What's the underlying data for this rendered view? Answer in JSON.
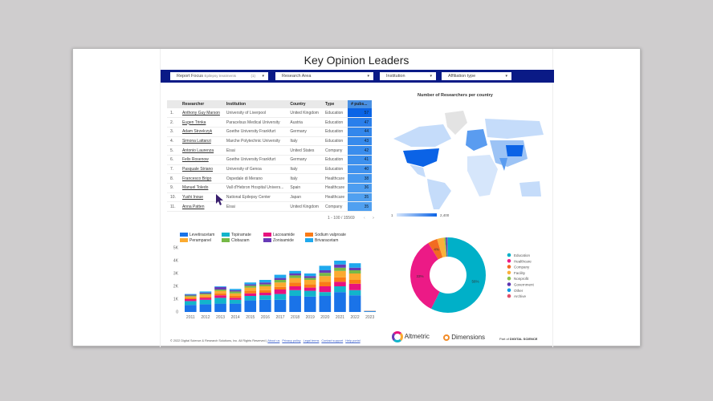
{
  "title": "Key Opinion Leaders",
  "filters": [
    {
      "label": "Report Focus",
      "value": "Epilepsy treatments",
      "count": "(1)"
    },
    {
      "label": "Research Area"
    },
    {
      "label": "Institution"
    },
    {
      "label": "Affiliation type"
    }
  ],
  "table": {
    "headers": [
      "",
      "Researcher",
      "Institution",
      "Country",
      "Type",
      "# pubs..."
    ],
    "rows": [
      [
        "1.",
        "Anthony Guy Marson",
        "University of Liverpool",
        "United Kingdom",
        "Education",
        "57"
      ],
      [
        "2.",
        "Eugen Trinka",
        "Paracelsus Medical University",
        "Austria",
        "Education",
        "47"
      ],
      [
        "3.",
        "Adam Strzelczyk",
        "Goethe University Frankfurt",
        "Germany",
        "Education",
        "44"
      ],
      [
        "4.",
        "Simona Lattanzi",
        "Marche Polytechnic University",
        "Italy",
        "Education",
        "43"
      ],
      [
        "5.",
        "Antonio Laurenza",
        "Eisai",
        "United States",
        "Company",
        "42"
      ],
      [
        "6.",
        "Felix Rosenow",
        "Goethe University Frankfurt",
        "Germany",
        "Education",
        "41"
      ],
      [
        "7.",
        "Pasquale Striano",
        "University of Genoa",
        "Italy",
        "Education",
        "40"
      ],
      [
        "8.",
        "Francesco Brigo",
        "Ospedale di Merano",
        "Italy",
        "Healthcare",
        "38"
      ],
      [
        "9.",
        "Manuel Toledo",
        "Vall d'Hebron Hospital Univers...",
        "Spain",
        "Healthcare",
        "36"
      ],
      [
        "10.",
        "Yushi Inoue",
        "National Epilepsy Center",
        "Japan",
        "Healthcare",
        "35"
      ],
      [
        "11.",
        "Anna Patten",
        "Eisai",
        "United Kingdom",
        "Company",
        "35"
      ]
    ],
    "pagination": "1 - 100 / 15569"
  },
  "map": {
    "title": "Number of Researchers per country",
    "scale_min": "1",
    "scale_max": "2,400",
    "colors": [
      "#d6e6fb",
      "#0b63e6"
    ]
  },
  "chart_data": [
    {
      "type": "bar",
      "stacked": true,
      "categories": [
        "2011",
        "2012",
        "2013",
        "2014",
        "2015",
        "2016",
        "2017",
        "2018",
        "2019",
        "2020",
        "2021",
        "2022",
        "2023"
      ],
      "yticks": [
        "0",
        "1K",
        "2K",
        "3K",
        "4K",
        "5K"
      ],
      "ylim": [
        0,
        5000
      ],
      "legend": "top",
      "series": [
        {
          "name": "Levetiracetam",
          "color": "#1a73e8",
          "values": [
            550,
            600,
            650,
            650,
            900,
            950,
            950,
            1250,
            1200,
            1250,
            1550,
            1300,
            50
          ]
        },
        {
          "name": "Topiramate",
          "color": "#12b5cb",
          "values": [
            300,
            350,
            450,
            300,
            350,
            350,
            450,
            450,
            450,
            300,
            450,
            400,
            20
          ]
        },
        {
          "name": "Lacosamide",
          "color": "#e8127f",
          "values": [
            150,
            150,
            200,
            150,
            200,
            200,
            350,
            300,
            250,
            450,
            350,
            500,
            10
          ]
        },
        {
          "name": "Sodium valproate",
          "color": "#fa7b17",
          "values": [
            100,
            100,
            150,
            150,
            200,
            200,
            200,
            300,
            250,
            350,
            350,
            300,
            5
          ]
        },
        {
          "name": "Perampanel",
          "color": "#fbaa30",
          "values": [
            100,
            150,
            200,
            200,
            250,
            300,
            350,
            350,
            350,
            450,
            500,
            500,
            5
          ]
        },
        {
          "name": "Clobazam",
          "color": "#76b947",
          "values": [
            80,
            80,
            100,
            150,
            150,
            150,
            200,
            200,
            150,
            250,
            250,
            250,
            5
          ]
        },
        {
          "name": "Zonisamide",
          "color": "#673ab7",
          "values": [
            70,
            80,
            200,
            100,
            100,
            150,
            150,
            150,
            150,
            200,
            250,
            200,
            3
          ]
        },
        {
          "name": "Brivaracetam",
          "color": "#1fa9ee",
          "values": [
            50,
            90,
            50,
            100,
            150,
            200,
            250,
            200,
            200,
            350,
            300,
            350,
            2
          ]
        }
      ]
    },
    {
      "type": "pie",
      "donut": true,
      "legend": "right",
      "slices": [
        {
          "name": "Education",
          "value": 56,
          "label": "56%",
          "color": "#00b0c8"
        },
        {
          "name": "Healthcare",
          "value": 33,
          "label": "33%",
          "color": "#ec1a86"
        },
        {
          "name": "Company",
          "value": 4,
          "label": "4%",
          "color": "#f26b22"
        },
        {
          "name": "Facility",
          "value": 3,
          "label": "",
          "color": "#fbb03b"
        },
        {
          "name": "Nonprofit",
          "value": 0.6,
          "label": "",
          "color": "#8bc34a"
        },
        {
          "name": "Government",
          "value": 0.6,
          "label": "",
          "color": "#5e35b1"
        },
        {
          "name": "Other",
          "value": 0.3,
          "label": "",
          "color": "#039be5"
        },
        {
          "name": "Archive",
          "value": 0.1,
          "label": "",
          "color": "#e0506a"
        }
      ]
    }
  ],
  "footer": {
    "copyright": "© 2022 Digital Science & Research Solutions, Inc. All Rights Reserved |",
    "links": [
      "About us",
      "Privacy policy",
      "Legal terms",
      "Contact support",
      "Help portal"
    ],
    "altmetric": "Altmetric",
    "dimensions": "Dimensions",
    "partof": "Part of",
    "digitalscience": "DIGITAL SCIENCE"
  }
}
